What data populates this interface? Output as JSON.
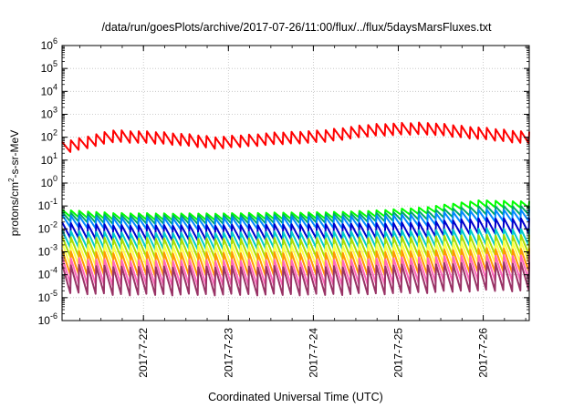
{
  "chart_data": {
    "type": "line",
    "title": "/data/run/goesPlots/archive/2017-07-26/11:00/flux/../flux/5daysMarsFluxes.txt",
    "xlabel": "Coordinated Universal Time (UTC)",
    "ylabel": {
      "pre": "protons/cm",
      "sup": "2",
      "post": "-s-sr-MeV"
    },
    "y_scale": "log",
    "ylim": [
      1e-06,
      1000000.0
    ],
    "y_ticks": [
      {
        "value": 1e-06,
        "base": "10",
        "exp": "-6"
      },
      {
        "value": 1e-05,
        "base": "10",
        "exp": "-5"
      },
      {
        "value": 0.0001,
        "base": "10",
        "exp": "-4"
      },
      {
        "value": 0.001,
        "base": "10",
        "exp": "-3"
      },
      {
        "value": 0.01,
        "base": "10",
        "exp": "-2"
      },
      {
        "value": 0.1,
        "base": "10",
        "exp": "-1"
      },
      {
        "value": 1,
        "base": "10",
        "exp": "0"
      },
      {
        "value": 10,
        "base": "10",
        "exp": "1"
      },
      {
        "value": 100,
        "base": "10",
        "exp": "2"
      },
      {
        "value": 1000,
        "base": "10",
        "exp": "3"
      },
      {
        "value": 10000,
        "base": "10",
        "exp": "4"
      },
      {
        "value": 100000,
        "base": "10",
        "exp": "5"
      },
      {
        "value": 1000000,
        "base": "10",
        "exp": "6"
      }
    ],
    "x_range": [
      "2017-07-21 01:00",
      "2017-07-26 13:00"
    ],
    "x_ticks": [
      {
        "value": "2017-07-22 00:00",
        "label": "2017-7-22"
      },
      {
        "value": "2017-07-23 00:00",
        "label": "2017-7-23"
      },
      {
        "value": "2017-07-24 00:00",
        "label": "2017-7-24"
      },
      {
        "value": "2017-07-25 00:00",
        "label": "2017-7-25"
      },
      {
        "value": "2017-07-26 00:00",
        "label": "2017-7-26"
      }
    ],
    "grid": true,
    "legend": "none",
    "sawtooth_period_hours": 2.4,
    "series": [
      {
        "color": "#ff0000",
        "base": [
          18,
          60,
          48,
          30,
          45,
          58,
          110,
          130,
          80,
          50
        ],
        "ratio": 3.5
      },
      {
        "color": "#00ff00",
        "base": [
          0.035,
          0.025,
          0.024,
          0.024,
          0.026,
          0.027,
          0.032,
          0.045,
          0.09,
          0.08
        ],
        "ratio": 2.0
      },
      {
        "color": "#00aa66",
        "base": [
          0.022,
          0.016,
          0.016,
          0.016,
          0.017,
          0.018,
          0.02,
          0.025,
          0.04,
          0.04
        ],
        "ratio": 2.5
      },
      {
        "color": "#0088ff",
        "base": [
          0.012,
          0.009,
          0.009,
          0.009,
          0.01,
          0.01,
          0.011,
          0.013,
          0.02,
          0.02
        ],
        "ratio": 3.5
      },
      {
        "color": "#0000cc",
        "base": [
          0.004,
          0.003,
          0.003,
          0.003,
          0.0032,
          0.0034,
          0.0036,
          0.004,
          0.006,
          0.006
        ],
        "ratio": 5
      },
      {
        "color": "#00cccc",
        "base": [
          0.0015,
          0.0012,
          0.0012,
          0.0012,
          0.0013,
          0.0013,
          0.0014,
          0.0015,
          0.0018,
          0.0017
        ],
        "ratio": 6
      },
      {
        "color": "#aadd00",
        "base": [
          0.0006,
          0.0005,
          0.0005,
          0.0005,
          0.0005,
          0.0005,
          0.00055,
          0.0006,
          0.0007,
          0.0007
        ],
        "ratio": 8
      },
      {
        "color": "#ffff44",
        "base": [
          0.00025,
          0.0002,
          0.0002,
          0.0002,
          0.0002,
          0.0002,
          0.00022,
          0.00024,
          0.0003,
          0.0003
        ],
        "ratio": 10
      },
      {
        "color": "#ff9900",
        "base": [
          0.0001,
          8e-05,
          8e-05,
          8e-05,
          8e-05,
          8e-05,
          9e-05,
          0.0001,
          0.00012,
          0.00012
        ],
        "ratio": 12
      },
      {
        "color": "#ff66bb",
        "base": [
          4e-05,
          3e-05,
          3e-05,
          3e-05,
          3e-05,
          3e-05,
          3.5e-05,
          4e-05,
          5e-05,
          5e-05
        ],
        "ratio": 15
      },
      {
        "color": "#993366",
        "base": [
          1.5e-05,
          1.2e-05,
          1.2e-05,
          1.2e-05,
          1.2e-05,
          1.2e-05,
          1.3e-05,
          1.5e-05,
          1.8e-05,
          1.8e-05
        ],
        "ratio": 20
      }
    ]
  }
}
